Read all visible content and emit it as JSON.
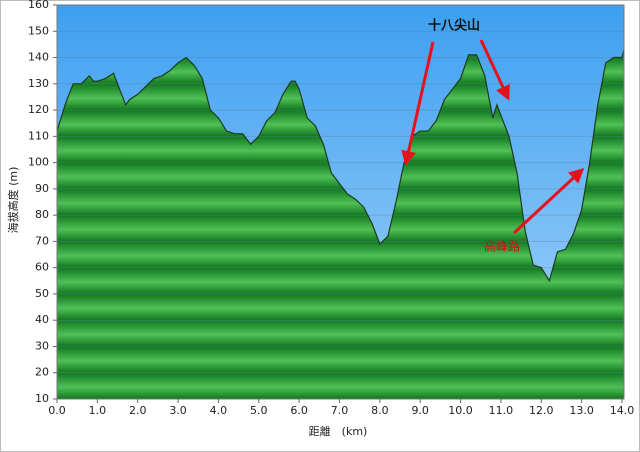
{
  "chart_data": {
    "type": "area",
    "x_label": "距離　(km)",
    "y_label": "海拔高度 (m)",
    "color": "#2a9a36",
    "grid": true,
    "x": [
      0.0,
      0.2,
      0.4,
      0.6,
      0.8,
      0.9,
      1.0,
      1.2,
      1.4,
      1.5,
      1.6,
      1.7,
      1.8,
      2.0,
      2.2,
      2.4,
      2.6,
      2.8,
      3.0,
      3.2,
      3.4,
      3.6,
      3.8,
      4.0,
      4.2,
      4.4,
      4.6,
      4.8,
      5.0,
      5.2,
      5.4,
      5.6,
      5.8,
      5.9,
      6.0,
      6.2,
      6.4,
      6.6,
      6.8,
      7.0,
      7.2,
      7.4,
      7.6,
      7.8,
      8.0,
      8.2,
      8.4,
      8.6,
      8.8,
      9.0,
      9.2,
      9.4,
      9.6,
      9.8,
      10.0,
      10.2,
      10.4,
      10.6,
      10.8,
      10.9,
      11.0,
      11.2,
      11.4,
      11.6,
      11.8,
      12.0,
      12.2,
      12.4,
      12.6,
      12.8,
      13.0,
      13.2,
      13.4,
      13.6,
      13.8,
      14.0,
      14.05
    ],
    "values": [
      112,
      122,
      130,
      130,
      133,
      131,
      131,
      132,
      134,
      130,
      126,
      122,
      124,
      126,
      129,
      132,
      133,
      135,
      138,
      140,
      137,
      132,
      120,
      117,
      112,
      111,
      111,
      107,
      110,
      116,
      119,
      126,
      131,
      131,
      128,
      117,
      114,
      107,
      96,
      92,
      88,
      86,
      83,
      77,
      69,
      72,
      85,
      100,
      110,
      112,
      112,
      116,
      124,
      128,
      132,
      141,
      141,
      133,
      117,
      122,
      118,
      110,
      96,
      74,
      61,
      60,
      55,
      66,
      67,
      73,
      82,
      100,
      122,
      138,
      140,
      140,
      143
    ],
    "xlim": [
      0,
      14.05
    ],
    "ylim": [
      10,
      160
    ],
    "xticks": [
      {
        "value": 0,
        "label": "0.0"
      },
      {
        "value": 1,
        "label": "1.0"
      },
      {
        "value": 2,
        "label": "2.0"
      },
      {
        "value": 3,
        "label": "3.0"
      },
      {
        "value": 4,
        "label": "4.0"
      },
      {
        "value": 5,
        "label": "5.0"
      },
      {
        "value": 6,
        "label": "6.0"
      },
      {
        "value": 7,
        "label": "7.0"
      },
      {
        "value": 8,
        "label": "8.0"
      },
      {
        "value": 9,
        "label": "9.0"
      },
      {
        "value": 10,
        "label": "10.0"
      },
      {
        "value": 11,
        "label": "11.0"
      },
      {
        "value": 12,
        "label": "12.0"
      },
      {
        "value": 13,
        "label": "13.0"
      },
      {
        "value": 14,
        "label": "14.0"
      }
    ],
    "yticks": [
      10,
      20,
      30,
      40,
      50,
      60,
      70,
      80,
      90,
      100,
      110,
      120,
      130,
      140,
      150,
      160
    ],
    "annotations": [
      {
        "text": "十八尖山"
      },
      {
        "text": "高峰路"
      }
    ]
  }
}
